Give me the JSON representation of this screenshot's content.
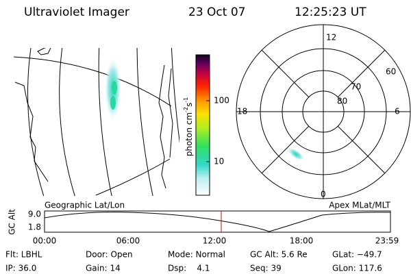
{
  "header": {
    "title": "Ultraviolet Imager",
    "date": "23 Oct 07",
    "time": "12:25:23 UT"
  },
  "colorbar": {
    "label": "photon cm",
    "exp1": "-2",
    "unit2": "s",
    "exp2": "-1",
    "ticks": [
      "100",
      "10"
    ]
  },
  "map": {
    "caption": "Geographic Lat/Lon"
  },
  "polar": {
    "caption": "Apex MLat/MLT",
    "mlt": [
      "12",
      "18",
      "6",
      "0"
    ],
    "mlat": [
      "60",
      "70",
      "80"
    ]
  },
  "timeline": {
    "ylabel": "GC Alt",
    "yticks": [
      "9.0",
      "1.8"
    ],
    "xticks": [
      "00:00",
      "06:00",
      "12:00",
      "18:00",
      "23:59"
    ]
  },
  "info": {
    "rows": [
      [
        "Flt: LBHL",
        "Door: Open",
        "Mode: Normal",
        "GC Alt: 5.6 Re",
        "GLat: −49.7"
      ],
      [
        "IP: 36.0",
        "Gain: 14",
        "Dsp:    4.1",
        "Seq: 39",
        "GLon: 117.6"
      ]
    ]
  }
}
